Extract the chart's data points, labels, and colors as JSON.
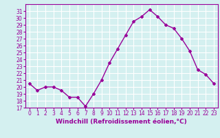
{
  "x": [
    0,
    1,
    2,
    3,
    4,
    5,
    6,
    7,
    8,
    9,
    10,
    11,
    12,
    13,
    14,
    15,
    16,
    17,
    18,
    19,
    20,
    21,
    22,
    23
  ],
  "y": [
    20.5,
    19.5,
    20.0,
    20.0,
    19.5,
    18.5,
    18.5,
    17.2,
    19.0,
    21.0,
    23.5,
    25.5,
    27.5,
    29.5,
    30.2,
    31.2,
    30.2,
    29.0,
    28.5,
    27.0,
    25.2,
    22.5,
    21.8,
    20.5
  ],
  "line_color": "#990099",
  "marker": "D",
  "marker_size": 2,
  "linewidth": 1.0,
  "xlabel": "Windchill (Refroidissement éolien,°C)",
  "ylabel": "",
  "xlim": [
    -0.5,
    23.5
  ],
  "ylim": [
    17,
    32
  ],
  "yticks": [
    17,
    18,
    19,
    20,
    21,
    22,
    23,
    24,
    25,
    26,
    27,
    28,
    29,
    30,
    31
  ],
  "xticks": [
    0,
    1,
    2,
    3,
    4,
    5,
    6,
    7,
    8,
    9,
    10,
    11,
    12,
    13,
    14,
    15,
    16,
    17,
    18,
    19,
    20,
    21,
    22,
    23
  ],
  "bg_color": "#d4f0f0",
  "grid_color": "#ffffff",
  "tick_color": "#990099",
  "label_color": "#990099",
  "xlabel_fontsize": 6.5,
  "tick_fontsize": 5.5,
  "xlabel_bold": true
}
